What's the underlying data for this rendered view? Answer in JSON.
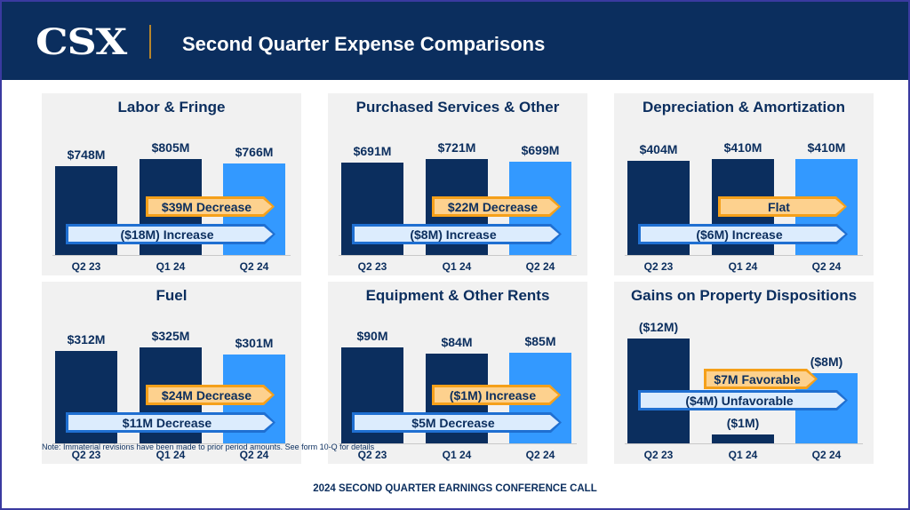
{
  "header": {
    "logo": "CSX",
    "title": "Second Quarter Expense Comparisons"
  },
  "colors": {
    "navy": "#0b2e5e",
    "current": "#3399ff",
    "orange_fill": "#fdd18e",
    "orange_border": "#f5a01a",
    "blue_fill": "#dcecfd",
    "blue_border": "#1f6fd1"
  },
  "chart_data": [
    {
      "type": "bar",
      "title": "Labor & Fringe",
      "categories": [
        "Q2 23",
        "Q1 24",
        "Q2 24"
      ],
      "values": [
        748,
        805,
        766
      ],
      "labels": [
        "$748M",
        "$805M",
        "$766M"
      ],
      "callouts": {
        "sequential": "$39M Decrease",
        "year_over_year": "($18M) Increase"
      }
    },
    {
      "type": "bar",
      "title": "Purchased Services & Other",
      "categories": [
        "Q2 23",
        "Q1 24",
        "Q2 24"
      ],
      "values": [
        691,
        721,
        699
      ],
      "labels": [
        "$691M",
        "$721M",
        "$699M"
      ],
      "callouts": {
        "sequential": "$22M Decrease",
        "year_over_year": "($8M) Increase"
      }
    },
    {
      "type": "bar",
      "title": "Depreciation & Amortization",
      "categories": [
        "Q2 23",
        "Q1 24",
        "Q2 24"
      ],
      "values": [
        404,
        410,
        410
      ],
      "labels": [
        "$404M",
        "$410M",
        "$410M"
      ],
      "callouts": {
        "sequential": "Flat",
        "year_over_year": "($6M) Increase"
      }
    },
    {
      "type": "bar",
      "title": "Fuel",
      "categories": [
        "Q2 23",
        "Q1 24",
        "Q2 24"
      ],
      "values": [
        312,
        325,
        301
      ],
      "labels": [
        "$312M",
        "$325M",
        "$301M"
      ],
      "callouts": {
        "sequential": "$24M Decrease",
        "year_over_year": "$11M Decrease"
      }
    },
    {
      "type": "bar",
      "title": "Equipment & Other Rents",
      "categories": [
        "Q2 23",
        "Q1 24",
        "Q2 24"
      ],
      "values": [
        90,
        84,
        85
      ],
      "labels": [
        "$90M",
        "$84M",
        "$85M"
      ],
      "callouts": {
        "sequential": "($1M) Increase",
        "year_over_year": "$5M Decrease"
      }
    },
    {
      "type": "bar",
      "title": "Gains on Property Dispositions",
      "categories": [
        "Q2 23",
        "Q1 24",
        "Q2 24"
      ],
      "values": [
        -12,
        -1,
        -8
      ],
      "labels": [
        "($12M)",
        "($1M)",
        "($8M)"
      ],
      "callouts": {
        "sequential": "$7M Favorable",
        "year_over_year": "($4M) Unfavorable"
      }
    }
  ],
  "footnote": "Note: Immaterial revisions have been made to prior period amounts. See form 10-Q for details",
  "footer": "2024 SECOND QUARTER EARNINGS CONFERENCE CALL"
}
